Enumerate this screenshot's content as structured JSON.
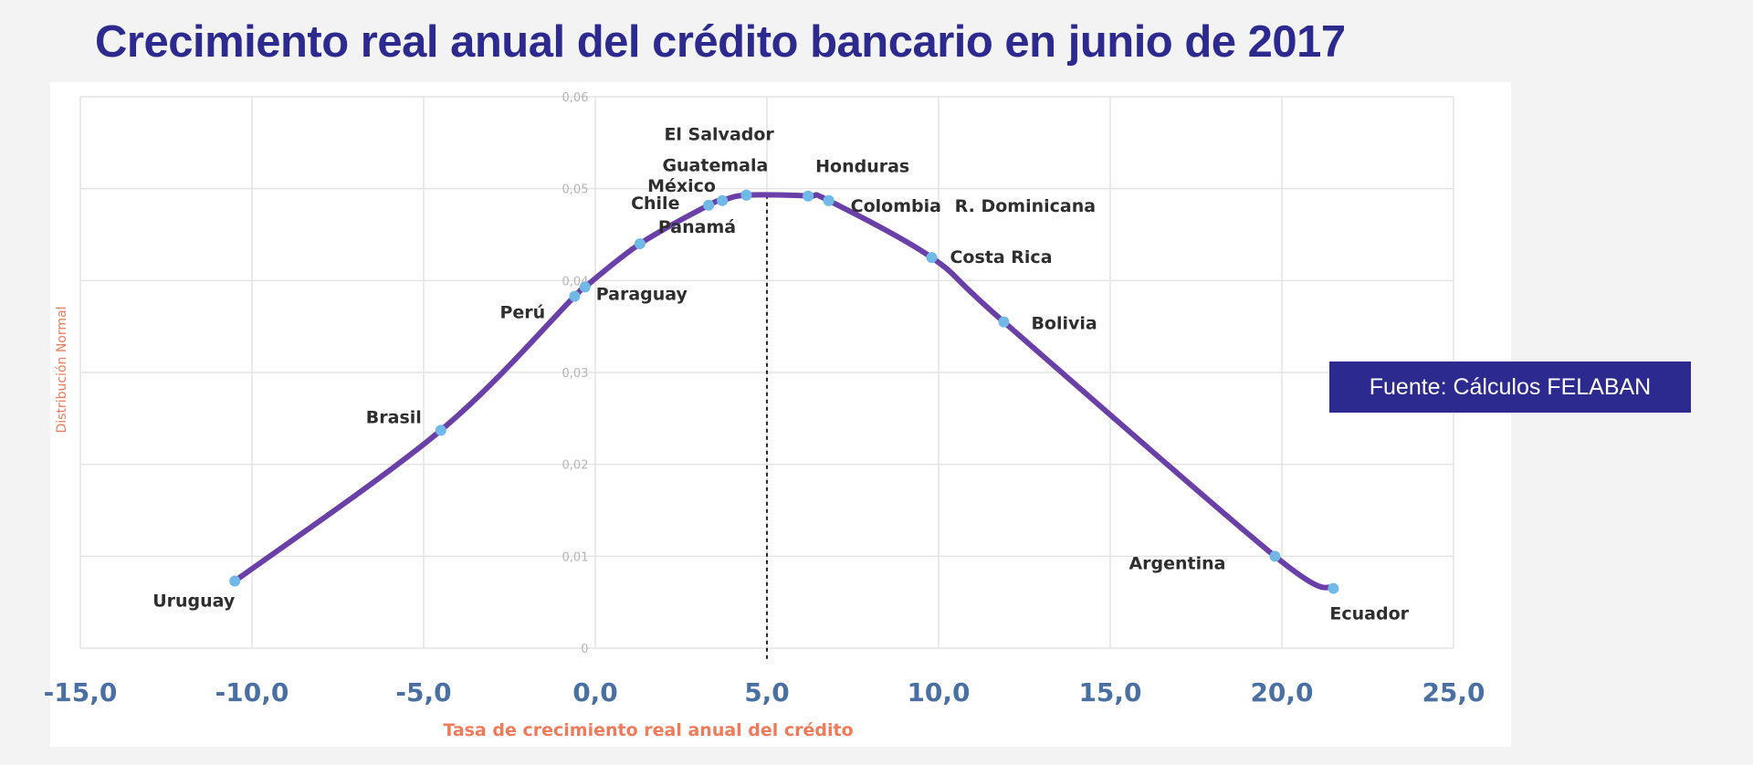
{
  "chart_data": {
    "type": "line",
    "title": "Crecimiento real anual  del crédito bancario  en junio de 2017",
    "xlabel": "Tasa de crecimiento real  anual del  crédito",
    "ylabel": "Distribución Normal",
    "xlim": [
      -15,
      25
    ],
    "ylim": [
      0,
      0.06
    ],
    "x_ticks": [
      "-15,0",
      "-10,0",
      "-5,0",
      "0,0",
      "5,0",
      "10,0",
      "15,0",
      "20,0",
      "25,0"
    ],
    "y_ticks": [
      "0",
      "0,01",
      "0,02",
      "0,03",
      "0,04",
      "0,05",
      "0,06"
    ],
    "grid": true,
    "reference_line_x": 5.0,
    "series": [
      {
        "points": [
          {
            "label": "Uruguay",
            "x": -10.5,
            "y": 0.0073
          },
          {
            "label": "Brasil",
            "x": -4.5,
            "y": 0.0237
          },
          {
            "label": "Perú",
            "x": -0.6,
            "y": 0.0383
          },
          {
            "label": "Paraguay",
            "x": -0.3,
            "y": 0.0393
          },
          {
            "label": "Panamá",
            "x": 1.3,
            "y": 0.044
          },
          {
            "label": "Chile",
            "x": 3.3,
            "y": 0.0482
          },
          {
            "label": "México",
            "x": 3.7,
            "y": 0.0487
          },
          {
            "label": "Guatemala",
            "x": 4.4,
            "y": 0.0493
          },
          {
            "label": "El Salvador",
            "x": 4.4,
            "y": 0.0493
          },
          {
            "label": "Honduras",
            "x": 6.2,
            "y": 0.0492
          },
          {
            "label": "Colombia",
            "x": 6.8,
            "y": 0.0487
          },
          {
            "label": "R. Dominicana",
            "x": 6.8,
            "y": 0.0487
          },
          {
            "label": "Costa Rica",
            "x": 9.8,
            "y": 0.0425
          },
          {
            "label": "Bolivia",
            "x": 11.9,
            "y": 0.0355
          },
          {
            "label": "Argentina",
            "x": 19.8,
            "y": 0.01
          },
          {
            "label": "Ecuador",
            "x": 21.5,
            "y": 0.0065
          }
        ]
      }
    ],
    "colors": {
      "line": "#6a3fa8",
      "marker": "#6fb8e8",
      "title": "#2d2a8f",
      "axis_ticks": "#4a6fa3",
      "axis_label": "#f07a5a",
      "source_box": "#2d2a8f"
    }
  },
  "source_note": "Fuente: Cálculos FELABAN"
}
